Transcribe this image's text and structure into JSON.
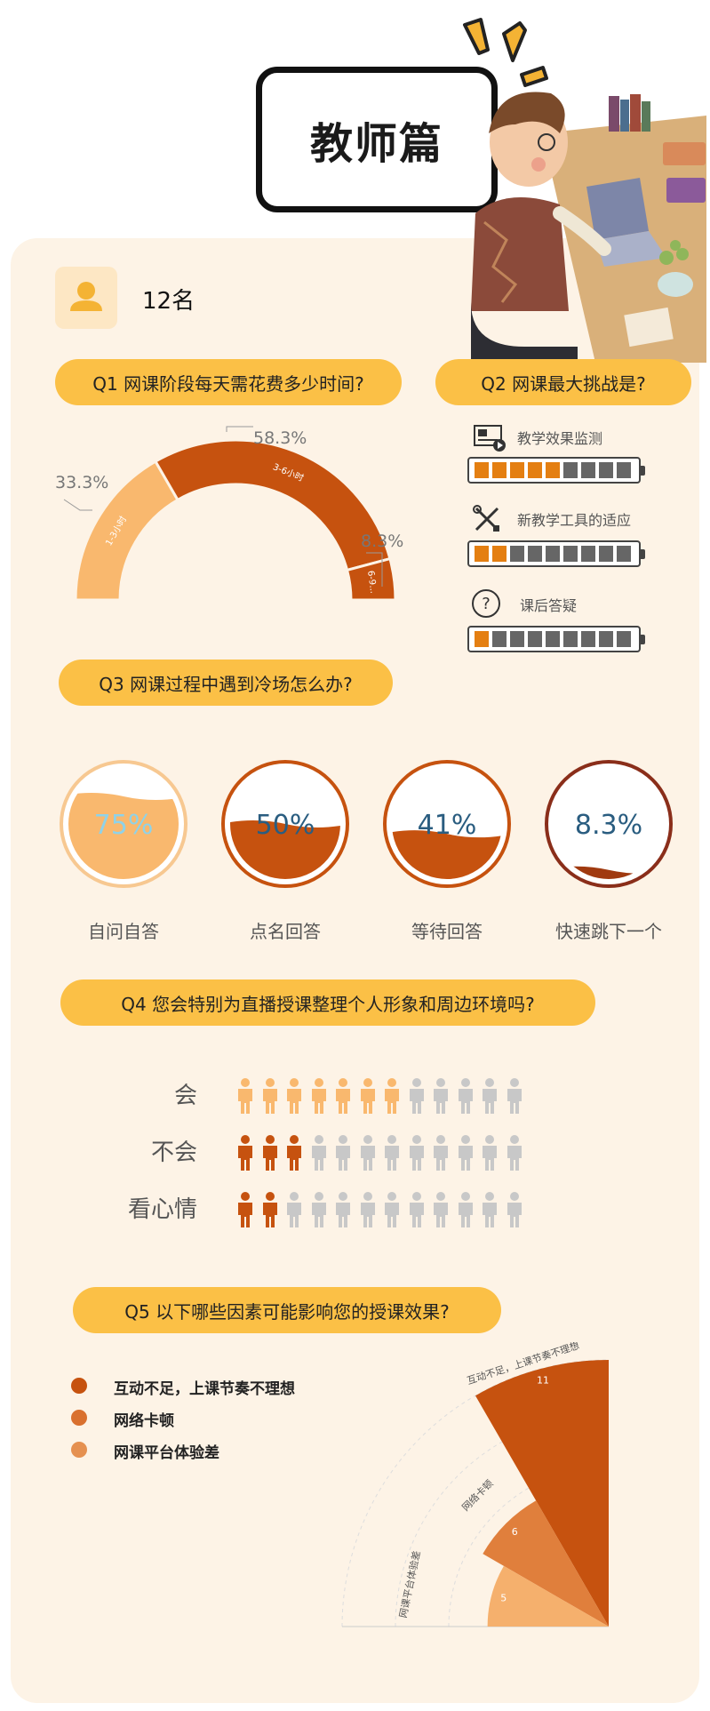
{
  "header": {
    "title": "教师篇"
  },
  "respondents": {
    "count_label": "12名",
    "icon": "person-icon"
  },
  "colors": {
    "light": "#f9b86e",
    "mid": "#e07f3c",
    "dark": "#c6520f",
    "darkest": "#a03a10",
    "gray": "#c8c8c8",
    "pill": "#fbc046"
  },
  "q1": {
    "question": "Q1 网课阶段每天需花费多少时间?",
    "labels": [
      "33.3%",
      "58.3%",
      "8.3%"
    ]
  },
  "q2": {
    "question": "Q2 网课最大挑战是?",
    "items": [
      {
        "label": "教学效果监测",
        "icon": "screen-video-icon",
        "filled": 5,
        "total": 9
      },
      {
        "label": "新教学工具的适应",
        "icon": "tools-icon",
        "filled": 2,
        "total": 9
      },
      {
        "label": "课后答疑",
        "icon": "question-icon",
        "filled": 1,
        "total": 9
      }
    ]
  },
  "q3": {
    "question": "Q3 网课过程中遇到冷场怎么办?",
    "items": [
      {
        "value": "75%",
        "caption": "自问自答",
        "level": 0.75
      },
      {
        "value": "50%",
        "caption": "点名回答",
        "level": 0.5
      },
      {
        "value": "41%",
        "caption": "等待回答",
        "level": 0.41
      },
      {
        "value": "8.3%",
        "caption": "快速跳下一个",
        "level": 0.083
      }
    ]
  },
  "q4": {
    "question": "Q4 您会特别为直播授课整理个人形象和周边环境吗?",
    "rows": [
      {
        "label": "会",
        "count": 7,
        "total": 12
      },
      {
        "label": "不会",
        "count": 3,
        "total": 12
      },
      {
        "label": "看心情",
        "count": 2,
        "total": 12
      }
    ]
  },
  "q5": {
    "question": "Q5 以下哪些因素可能影响您的授课效果?",
    "legend": [
      "互动不足，上课节奏不理想",
      "网络卡顿",
      "网课平台体验差"
    ],
    "axis_labels": [
      "互动不足，上课节奏不理想",
      "网络卡顿",
      "网课平台体验差"
    ]
  },
  "chart_data": [
    {
      "type": "pie",
      "title": "Q1 网课阶段每天需花费多少时间?",
      "categories": [
        "1-3小时",
        "3-6小时",
        "6-9小时"
      ],
      "values": [
        33.3,
        58.3,
        8.3
      ],
      "category_labels_shown": [
        "1-3小时",
        "3-6小时",
        "6-9..."
      ]
    },
    {
      "type": "bar",
      "title": "Q5 以下哪些因素可能影响您的授课效果?",
      "categories": [
        "互动不足，上课节奏不理想",
        "网络卡顿",
        "网课平台体验差"
      ],
      "values": [
        11,
        6,
        5
      ]
    }
  ]
}
